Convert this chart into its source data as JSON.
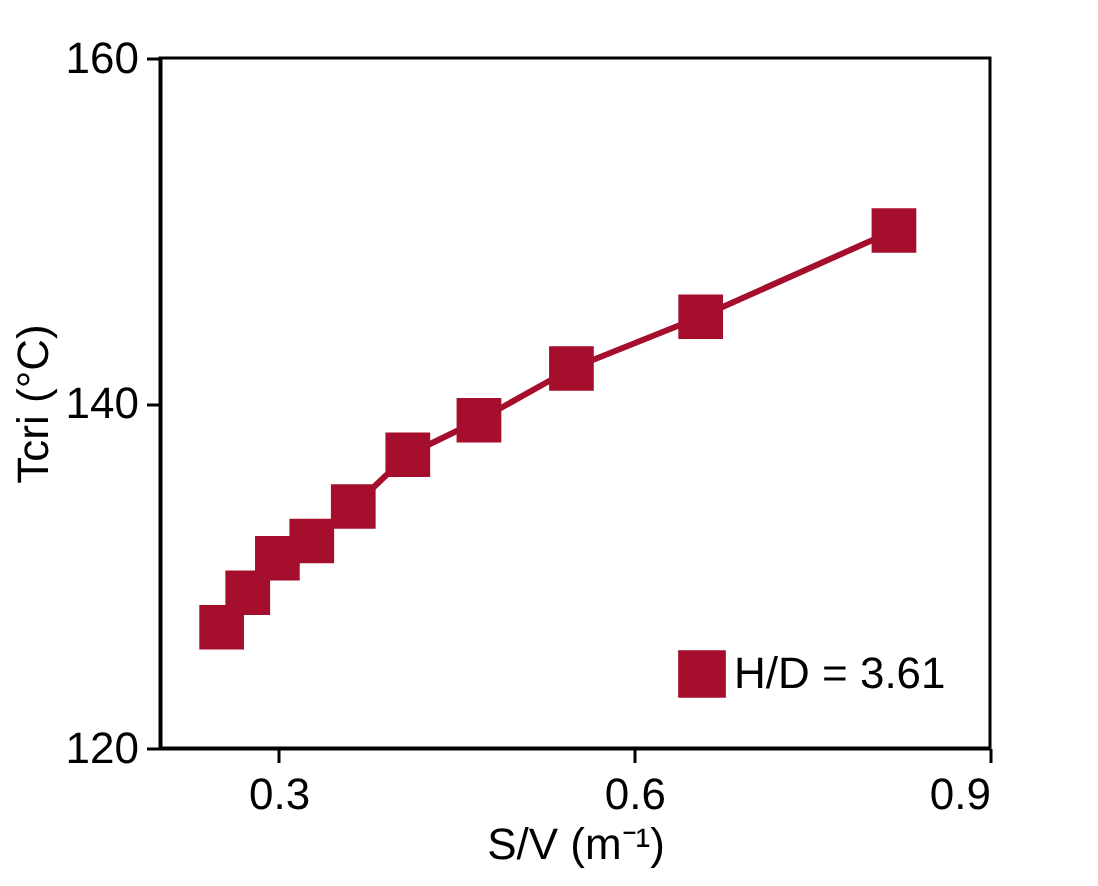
{
  "chart_data": {
    "type": "line",
    "xlabel": "S/V (m⁻¹)",
    "ylabel": "Tcri (°C)",
    "x": [
      0.252,
      0.274,
      0.299,
      0.328,
      0.363,
      0.409,
      0.469,
      0.547,
      0.656,
      0.819
    ],
    "series": [
      {
        "name": "H/D = 3.61",
        "color": "#a50f2d",
        "values": [
          127,
          129,
          131,
          132,
          134,
          137,
          139,
          142,
          145,
          150
        ]
      }
    ],
    "xlim": [
      0.2,
      0.9
    ],
    "xticks": [
      0.3,
      0.6,
      0.9
    ],
    "ylim": [
      120,
      160
    ],
    "yticks": [
      120,
      140,
      160
    ],
    "marker": "square",
    "line_style": "solid",
    "legend": "bottom right",
    "grid": false
  }
}
